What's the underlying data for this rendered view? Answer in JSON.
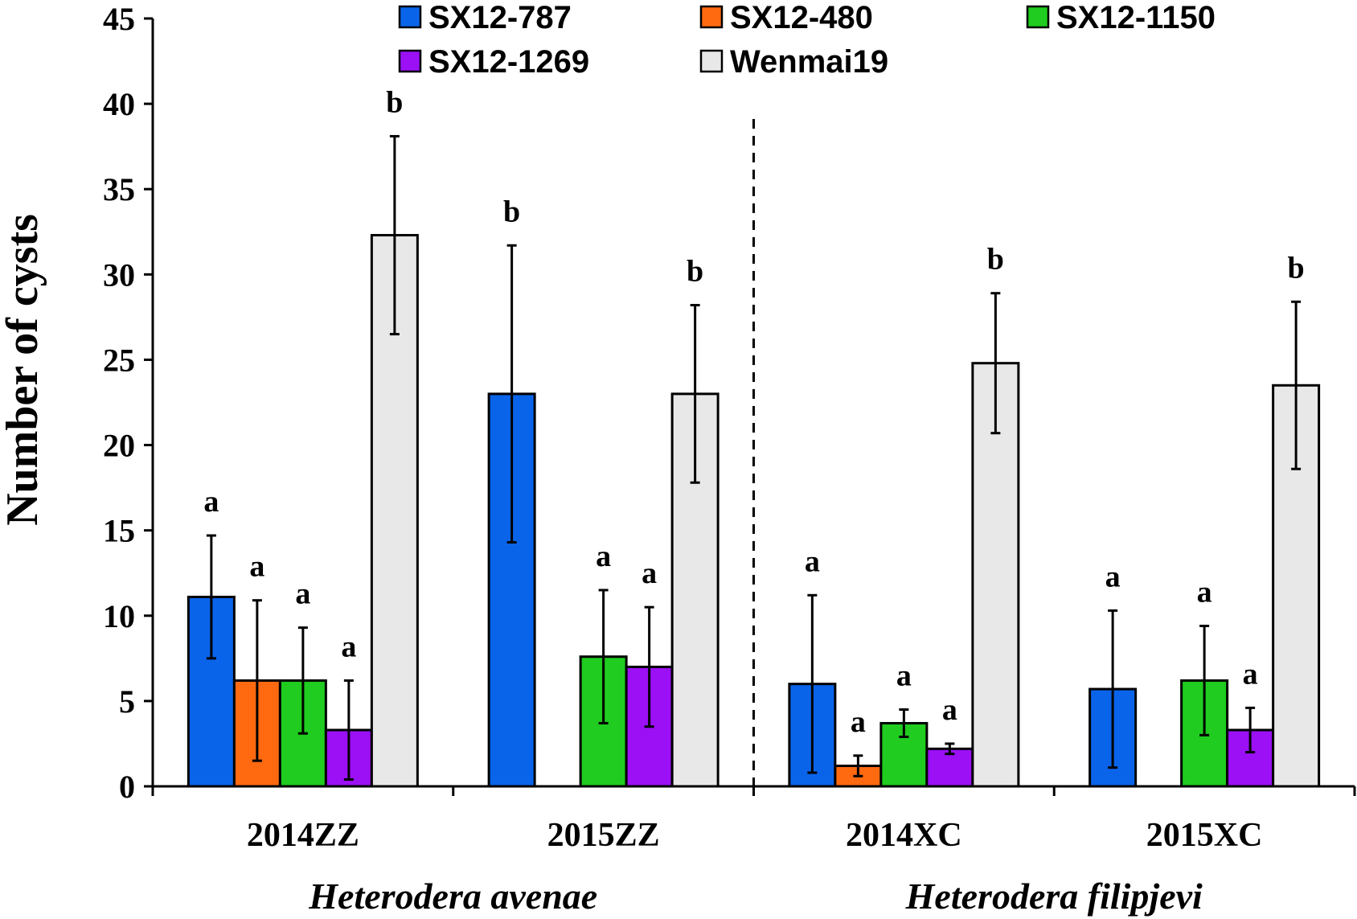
{
  "chart_data": {
    "type": "bar",
    "ylabel": "Number of cysts",
    "ylim": [
      0,
      45
    ],
    "ytick_step": 5,
    "categories": [
      "2014ZZ",
      "2015ZZ",
      "2014XC",
      "2015XC"
    ],
    "group_labels": [
      "Heterodera avenae",
      "Heterodera filipjevi"
    ],
    "legend": "top",
    "series": [
      {
        "name": "SX12-787",
        "color": "#0a64ea",
        "values": [
          11.1,
          23.0,
          6.0,
          5.7
        ],
        "errors": [
          3.6,
          8.7,
          5.2,
          4.6
        ],
        "labels": [
          "a",
          "b",
          "a",
          "a"
        ]
      },
      {
        "name": "SX12-480",
        "color": "#ff6a10",
        "values": [
          6.2,
          null,
          1.2,
          null
        ],
        "errors": [
          4.7,
          null,
          0.6,
          null
        ],
        "labels": [
          "a",
          "",
          "a",
          ""
        ]
      },
      {
        "name": "SX12-1150",
        "color": "#1fcc1f",
        "values": [
          6.2,
          7.6,
          3.7,
          6.2
        ],
        "errors": [
          3.1,
          3.9,
          0.8,
          3.2
        ],
        "labels": [
          "a",
          "a",
          "a",
          "a"
        ]
      },
      {
        "name": "SX12-1269",
        "color": "#9b10f5",
        "values": [
          3.3,
          7.0,
          2.2,
          3.3
        ],
        "errors": [
          2.9,
          3.5,
          0.3,
          1.3
        ],
        "labels": [
          "a",
          "a",
          "a",
          "a"
        ]
      },
      {
        "name": "Wenmai19",
        "color": "#e8e8e8",
        "values": [
          32.3,
          23.0,
          24.8,
          23.5
        ],
        "errors": [
          5.8,
          5.2,
          4.1,
          4.9
        ],
        "labels": [
          "b",
          "b",
          "b",
          "b"
        ]
      }
    ]
  }
}
